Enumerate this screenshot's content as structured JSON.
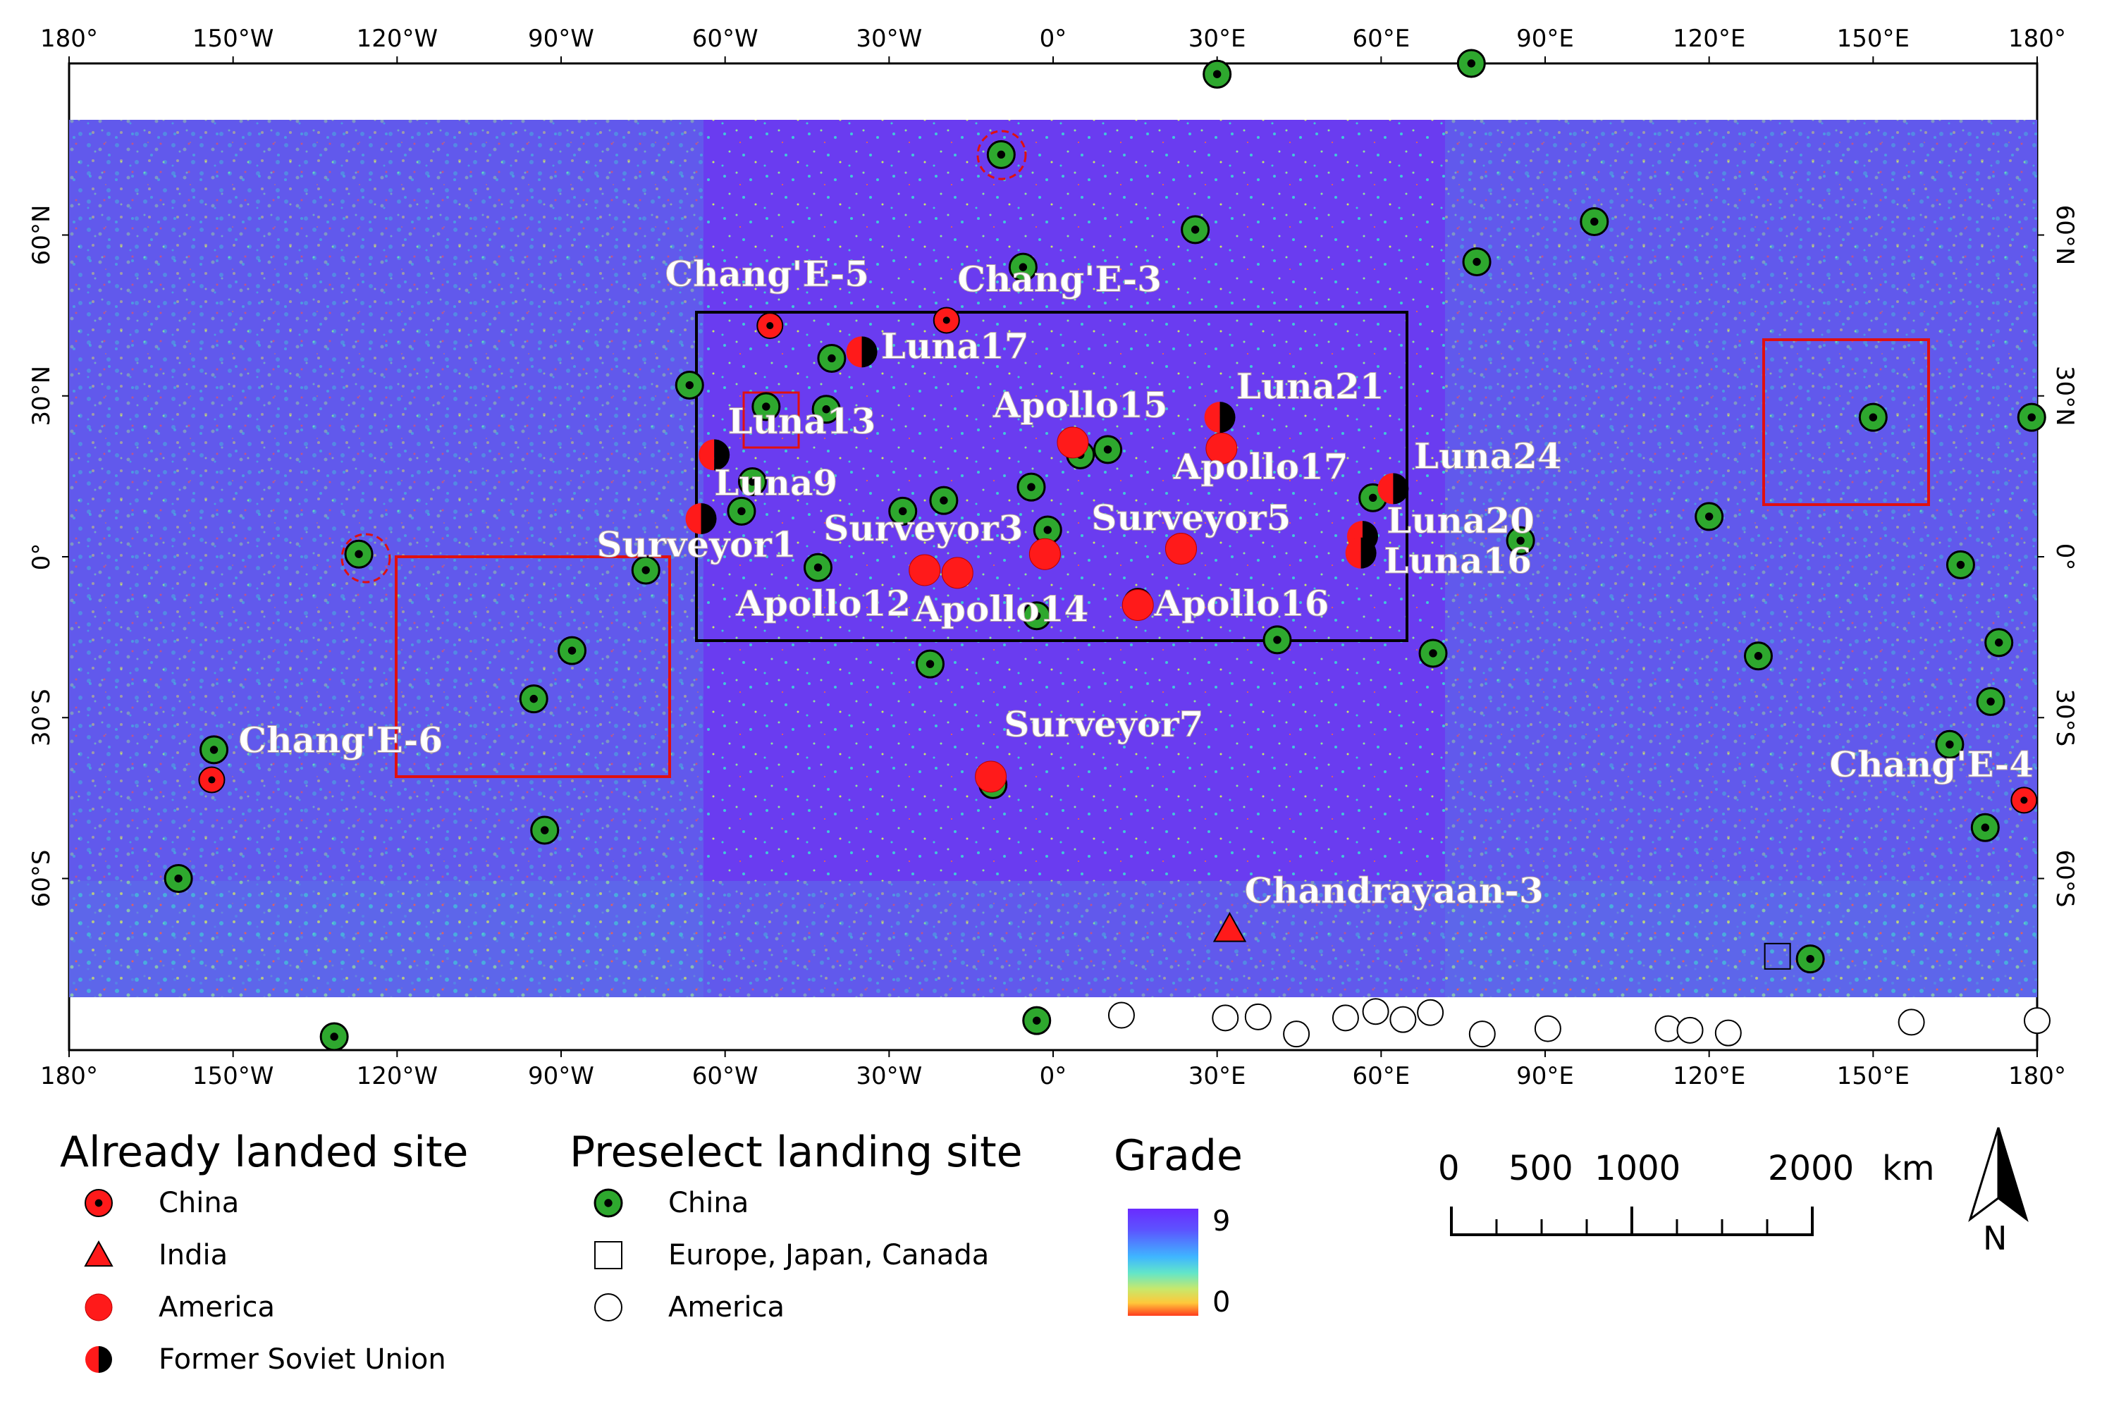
{
  "map": {
    "top_ticks": [
      "180°",
      "150°W",
      "120°W",
      "90°W",
      "60°W",
      "30°W",
      "0°",
      "30°E",
      "60°E",
      "90°E",
      "120°E",
      "150°E",
      "180°"
    ],
    "bottom_ticks": [
      "180°",
      "150°W",
      "120°W",
      "90°W",
      "60°W",
      "30°W",
      "0°",
      "30°E",
      "60°E",
      "90°E",
      "120°E",
      "150°E",
      "180°"
    ],
    "left_ticks": [
      "60°N",
      "30°N",
      "0°",
      "30°S",
      "60°S"
    ],
    "right_ticks": [
      "60°N",
      "30°N",
      "0°",
      "30°S",
      "60°S"
    ],
    "colors": {
      "background": "#6a3cf0",
      "texture_low": "#40c8d8",
      "texture_mid": "#8fe0a0",
      "frame": "#000000",
      "highlight_box": "#e01010"
    }
  },
  "landed_sites": [
    {
      "label": "Chang'E-5",
      "type": "china",
      "lon": -51.8,
      "lat": 43.1
    },
    {
      "label": "Chang'E-3",
      "type": "china",
      "lon": -19.5,
      "lat": 44.1
    },
    {
      "label": "Luna17",
      "type": "soviet",
      "lon": -35,
      "lat": 38.2
    },
    {
      "label": "Luna13",
      "type": "soviet",
      "lon": -62,
      "lat": 19
    },
    {
      "label": "Luna9",
      "type": "soviet",
      "lon": -64.4,
      "lat": 7.1
    },
    {
      "label": "Surveyor1",
      "type": "america",
      "lon": -23.5,
      "lat": -2.5
    },
    {
      "label": "Apollo12",
      "type": "america",
      "lon": -17.5,
      "lat": -3
    },
    {
      "label": "Apollo14",
      "type": "america",
      "lon": -1.5,
      "lat": 0.5
    },
    {
      "label": "Surveyor3",
      "type": "america",
      "lon": 3.6,
      "lat": 21.3
    },
    {
      "label": "Apollo15",
      "type": "america",
      "lon": 30.8,
      "lat": 20.2
    },
    {
      "label": "Luna21",
      "type": "soviet",
      "lon": 30.5,
      "lat": 26
    },
    {
      "label": "Apollo17",
      "type": "america",
      "lon": 23.4,
      "lat": 1.5
    },
    {
      "label": "Surveyor5",
      "type": "america",
      "lon": 23.4,
      "lat": 1.5
    },
    {
      "label": "Luna24",
      "type": "soviet",
      "lon": 62.2,
      "lat": 12.7
    },
    {
      "label": "Luna20",
      "type": "soviet",
      "lon": 56.6,
      "lat": 3.8
    },
    {
      "label": "Luna16",
      "type": "soviet",
      "lon": 56.3,
      "lat": 0.7
    },
    {
      "label": "Apollo16",
      "type": "america",
      "lon": 15.5,
      "lat": -9
    },
    {
      "label": "Surveyor7",
      "type": "america",
      "lon": -11.4,
      "lat": -41
    },
    {
      "label": "Chang'E-6",
      "type": "china",
      "lon": -153.9,
      "lat": -41.6
    },
    {
      "label": "Chang'E-4",
      "type": "china",
      "lon": 177.6,
      "lat": -45.4
    },
    {
      "label": "Chandrayaan-3",
      "type": "india",
      "lon": 32.3,
      "lat": -69.4
    }
  ],
  "preselect_china": [
    {
      "lon": 30,
      "lat": 90
    },
    {
      "lon": 76.5,
      "lat": 92
    },
    {
      "lon": -9.5,
      "lat": 75
    },
    {
      "lon": 26,
      "lat": 61
    },
    {
      "lon": 99,
      "lat": 62.5
    },
    {
      "lon": -5.5,
      "lat": 54
    },
    {
      "lon": 77.5,
      "lat": 55
    },
    {
      "lon": -40.5,
      "lat": 37
    },
    {
      "lon": -66.5,
      "lat": 32
    },
    {
      "lon": -52.5,
      "lat": 28
    },
    {
      "lon": -41.5,
      "lat": 27.5
    },
    {
      "lon": 150,
      "lat": 26
    },
    {
      "lon": 179,
      "lat": 26
    },
    {
      "lon": 10,
      "lat": 20
    },
    {
      "lon": 5,
      "lat": 19
    },
    {
      "lon": -55,
      "lat": 14
    },
    {
      "lon": -4,
      "lat": 13
    },
    {
      "lon": 58.5,
      "lat": 11
    },
    {
      "lon": -20,
      "lat": 10.5
    },
    {
      "lon": -27.5,
      "lat": 8.5
    },
    {
      "lon": -57,
      "lat": 8.5
    },
    {
      "lon": 120,
      "lat": 7.5
    },
    {
      "lon": 85.5,
      "lat": 3
    },
    {
      "lon": -1,
      "lat": 5
    },
    {
      "lon": -127,
      "lat": 0.5
    },
    {
      "lon": -74.5,
      "lat": -2.5
    },
    {
      "lon": -43,
      "lat": -2
    },
    {
      "lon": 166,
      "lat": -1.5
    },
    {
      "lon": -3,
      "lat": -11
    },
    {
      "lon": 15.5,
      "lat": -8.5
    },
    {
      "lon": 41,
      "lat": -15.5
    },
    {
      "lon": 69.5,
      "lat": -18
    },
    {
      "lon": -88,
      "lat": -17.5
    },
    {
      "lon": 129,
      "lat": -18.5
    },
    {
      "lon": 173,
      "lat": -16
    },
    {
      "lon": -22.5,
      "lat": -20
    },
    {
      "lon": -95,
      "lat": -26.5
    },
    {
      "lon": 171.5,
      "lat": -27
    },
    {
      "lon": 164,
      "lat": -35
    },
    {
      "lon": -153.5,
      "lat": -36
    },
    {
      "lon": -11,
      "lat": -42.5
    },
    {
      "lon": -93,
      "lat": -51
    },
    {
      "lon": 170.5,
      "lat": -50.5
    },
    {
      "lon": -160,
      "lat": -60
    },
    {
      "lon": 138.5,
      "lat": -75
    },
    {
      "lon": -131.5,
      "lat": -89.5
    },
    {
      "lon": -3,
      "lat": -86.5
    }
  ],
  "preselect_europe": [
    {
      "lon": 132.5,
      "lat": -74.5
    }
  ],
  "preselect_america": [
    {
      "lon": 12.5,
      "lat": -85.5
    },
    {
      "lon": 31.5,
      "lat": -86
    },
    {
      "lon": 37.5,
      "lat": -85.8
    },
    {
      "lon": 44.5,
      "lat": -89
    },
    {
      "lon": 53.5,
      "lat": -86
    },
    {
      "lon": 59,
      "lat": -84.8
    },
    {
      "lon": 64,
      "lat": -86.3
    },
    {
      "lon": 69,
      "lat": -85
    },
    {
      "lon": 78.5,
      "lat": -89
    },
    {
      "lon": 90.5,
      "lat": -88
    },
    {
      "lon": 112.5,
      "lat": -88
    },
    {
      "lon": 116.5,
      "lat": -88.3
    },
    {
      "lon": 123.5,
      "lat": -88.8
    },
    {
      "lon": 157,
      "lat": -86.8
    },
    {
      "lon": 180,
      "lat": -86.5
    }
  ],
  "labels": [
    {
      "text": "Chang'E-5",
      "lon": -71,
      "lat": 50.5
    },
    {
      "text": "Chang'E-3",
      "lon": -17.5,
      "lat": 49.5
    },
    {
      "text": "Luna17",
      "lon": -31.5,
      "lat": 37
    },
    {
      "text": "Luna13",
      "lon": -59.5,
      "lat": 23
    },
    {
      "text": "Luna9",
      "lon": -62,
      "lat": 11.5
    },
    {
      "text": "Surveyor1",
      "lon": -83.5,
      "lat": 0
    },
    {
      "text": "Surveyor3",
      "lon": -42,
      "lat": 3
    },
    {
      "text": "Apollo12",
      "lon": -58,
      "lat": -11
    },
    {
      "text": "Apollo14",
      "lon": -25.5,
      "lat": -12
    },
    {
      "text": "Apollo15",
      "lon": -11,
      "lat": 26
    },
    {
      "text": "Luna21",
      "lon": 33.5,
      "lat": 29.5
    },
    {
      "text": "Apollo17",
      "lon": 22,
      "lat": 14.5
    },
    {
      "text": "Surveyor5",
      "lon": 7,
      "lat": 5
    },
    {
      "text": "Luna24",
      "lon": 66,
      "lat": 16.5
    },
    {
      "text": "Luna20",
      "lon": 61,
      "lat": 4.5
    },
    {
      "text": "Luna16",
      "lon": 60.5,
      "lat": -3
    },
    {
      "text": "Apollo16",
      "lon": 18.5,
      "lat": -11
    },
    {
      "text": "Surveyor7",
      "lon": -9,
      "lat": -33.5
    },
    {
      "text": "Chang'E-6",
      "lon": -149,
      "lat": -36.5
    },
    {
      "text": "Chang'E-4",
      "lon": 142,
      "lat": -41
    },
    {
      "text": "Chandrayaan-3",
      "lon": 35,
      "lat": -64.5
    }
  ],
  "legend_landed": {
    "title": "Already landed site",
    "items": [
      {
        "type": "china",
        "label": "China"
      },
      {
        "type": "india",
        "label": "India"
      },
      {
        "type": "america",
        "label": "America"
      },
      {
        "type": "soviet",
        "label": "Former Soviet Union"
      }
    ]
  },
  "legend_preselect": {
    "title": "Preselect landing site",
    "items": [
      {
        "type": "china",
        "label": "China"
      },
      {
        "type": "europe",
        "label": "Europe, Japan, Canada"
      },
      {
        "type": "america",
        "label": "America"
      }
    ]
  },
  "grade": {
    "title": "Grade",
    "max": "9",
    "min": "0"
  },
  "scale": {
    "labels": [
      "0",
      "500",
      "1000",
      "2000"
    ],
    "unit": "km"
  },
  "north": {
    "label": "N"
  }
}
